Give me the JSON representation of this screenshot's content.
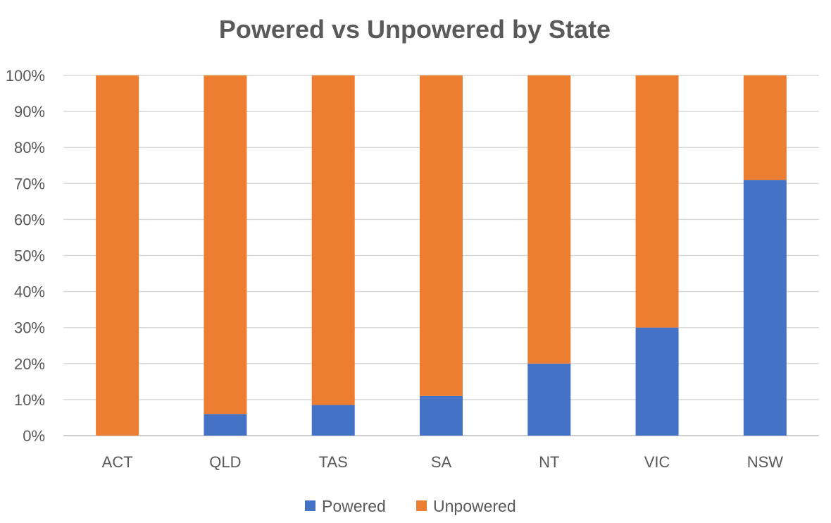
{
  "chart_data": {
    "type": "bar",
    "stacked": true,
    "title": "Powered vs Unpowered by State",
    "categories": [
      "ACT",
      "QLD",
      "TAS",
      "SA",
      "NT",
      "VIC",
      "NSW"
    ],
    "series": [
      {
        "name": "Powered",
        "color": "#4472C4",
        "values": [
          0,
          6,
          8.5,
          11,
          20,
          30,
          71
        ]
      },
      {
        "name": "Unpowered",
        "color": "#ED7D31",
        "values": [
          100,
          94,
          91.5,
          89,
          80,
          70,
          29
        ]
      }
    ],
    "ylim": [
      0,
      100
    ],
    "yticks": [
      "0%",
      "10%",
      "20%",
      "30%",
      "40%",
      "50%",
      "60%",
      "70%",
      "80%",
      "90%",
      "100%"
    ],
    "grid": true,
    "legend_position": "bottom",
    "xlabel": "",
    "ylabel": ""
  }
}
